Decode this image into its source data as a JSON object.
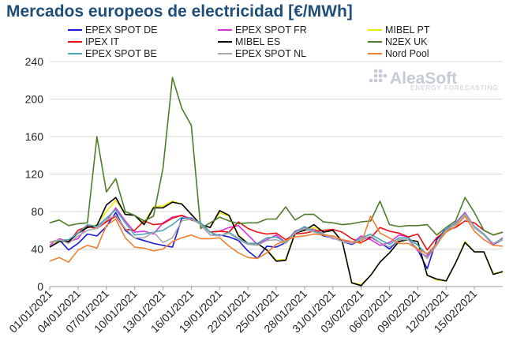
{
  "title": "Mercados europeos de electricidad [€/MWh]",
  "logo": {
    "main": "AleaSoft",
    "sub": "ENERGY FORECASTING"
  },
  "chart_data": {
    "type": "line",
    "title": "Mercados europeos de electricidad [€/MWh]",
    "ylim": [
      0,
      240
    ],
    "yticks": [
      0,
      40,
      80,
      120,
      160,
      200,
      240
    ],
    "grid": "horizontal",
    "legend_position": "top",
    "xticks": [
      "01/01/2021",
      "04/01/2021",
      "07/01/2021",
      "10/01/2021",
      "13/01/2021",
      "16/01/2021",
      "19/01/2021",
      "22/01/2021",
      "25/01/2021",
      "28/01/2021",
      "31/01/2021",
      "03/02/2021",
      "06/02/2021",
      "09/02/2021",
      "12/02/2021",
      "15/02/2021"
    ],
    "x_start": "01/01/2021",
    "series": [
      {
        "name": "EPEX SPOT DE",
        "color": "#1a1ad8",
        "values": [
          47,
          50,
          39,
          46,
          56,
          54,
          64,
          79,
          60,
          52,
          49,
          46,
          44,
          42,
          73,
          73,
          66,
          55,
          55,
          53,
          49,
          38,
          30,
          43,
          42,
          47,
          59,
          61,
          59,
          54,
          52,
          48,
          45,
          50,
          53,
          47,
          40,
          50,
          50,
          39,
          19,
          50,
          62,
          67,
          78,
          63,
          55,
          45,
          50
        ]
      },
      {
        "name": "EPEX SPOT FR",
        "color": "#e030e0",
        "values": [
          44,
          51,
          48,
          51,
          65,
          64,
          70,
          84,
          70,
          58,
          59,
          56,
          68,
          74,
          76,
          72,
          68,
          58,
          59,
          63,
          65,
          55,
          45,
          50,
          55,
          47,
          59,
          63,
          61,
          56,
          51,
          50,
          46,
          54,
          50,
          44,
          47,
          55,
          53,
          38,
          32,
          45,
          60,
          68,
          79,
          64,
          56,
          45,
          52
        ]
      },
      {
        "name": "MIBEL PT",
        "color": "#e8e800",
        "values": [
          47,
          48,
          48,
          57,
          63,
          66,
          80,
          92,
          77,
          76,
          68,
          85,
          86,
          91,
          88,
          77,
          66,
          63,
          79,
          75,
          55,
          46,
          46,
          39,
          28,
          29,
          58,
          61,
          63,
          58,
          60,
          48,
          4,
          2,
          12,
          26,
          36,
          48,
          50,
          48,
          12,
          7,
          6,
          25,
          48,
          37,
          37,
          14,
          15
        ]
      },
      {
        "name": "IPEX IT",
        "color": "#e81010",
        "values": [
          47,
          50,
          47,
          60,
          64,
          62,
          69,
          75,
          61,
          60,
          70,
          66,
          67,
          73,
          76,
          71,
          68,
          58,
          59,
          58,
          69,
          62,
          58,
          56,
          57,
          50,
          56,
          57,
          59,
          60,
          61,
          58,
          51,
          47,
          52,
          63,
          59,
          57,
          53,
          56,
          39,
          52,
          60,
          63,
          70,
          68,
          60,
          55,
          58
        ]
      },
      {
        "name": "MIBEL ES",
        "color": "#000000",
        "values": [
          42,
          48,
          48,
          57,
          63,
          65,
          87,
          95,
          77,
          76,
          66,
          84,
          84,
          90,
          88,
          77,
          66,
          63,
          81,
          76,
          54,
          46,
          46,
          39,
          27,
          28,
          57,
          60,
          66,
          58,
          60,
          48,
          4,
          1,
          12,
          26,
          36,
          48,
          50,
          48,
          12,
          8,
          6,
          25,
          47,
          37,
          37,
          13,
          16
        ]
      },
      {
        "name": "N2EX UK",
        "color": "#4e7d2a",
        "values": [
          68,
          71,
          65,
          67,
          68,
          160,
          101,
          115,
          80,
          76,
          70,
          75,
          126,
          223,
          190,
          172,
          62,
          68,
          74,
          70,
          67,
          68,
          68,
          72,
          72,
          85,
          71,
          77,
          77,
          69,
          68,
          66,
          67,
          69,
          70,
          91,
          66,
          64,
          65,
          65,
          66,
          55,
          63,
          70,
          95,
          79,
          60,
          55,
          58
        ]
      },
      {
        "name": "EPEX SPOT BE",
        "color": "#4aa7b8",
        "values": [
          47,
          49,
          50,
          57,
          66,
          64,
          73,
          82,
          68,
          55,
          56,
          58,
          60,
          66,
          74,
          72,
          68,
          58,
          54,
          58,
          51,
          46,
          46,
          52,
          53,
          47,
          58,
          64,
          59,
          56,
          52,
          48,
          46,
          52,
          56,
          50,
          45,
          52,
          52,
          44,
          34,
          46,
          62,
          67,
          78,
          64,
          56,
          46,
          51
        ]
      },
      {
        "name": "EPEX SPOT NL",
        "color": "#a9a9a9",
        "values": [
          47,
          50,
          46,
          54,
          60,
          62,
          71,
          76,
          62,
          52,
          52,
          58,
          47,
          52,
          70,
          72,
          66,
          55,
          54,
          57,
          50,
          45,
          44,
          49,
          50,
          46,
          57,
          62,
          58,
          55,
          52,
          48,
          46,
          50,
          54,
          47,
          42,
          50,
          50,
          40,
          30,
          44,
          60,
          66,
          77,
          63,
          55,
          46,
          50
        ]
      },
      {
        "name": "Nord Pool",
        "color": "#f08030",
        "values": [
          27,
          31,
          26,
          39,
          44,
          41,
          65,
          72,
          52,
          42,
          41,
          38,
          40,
          48,
          52,
          55,
          51,
          51,
          52,
          43,
          36,
          31,
          30,
          36,
          45,
          49,
          53,
          54,
          56,
          55,
          54,
          50,
          48,
          46,
          75,
          57,
          52,
          46,
          46,
          40,
          35,
          46,
          58,
          64,
          75,
          59,
          50,
          44,
          43
        ]
      }
    ]
  }
}
